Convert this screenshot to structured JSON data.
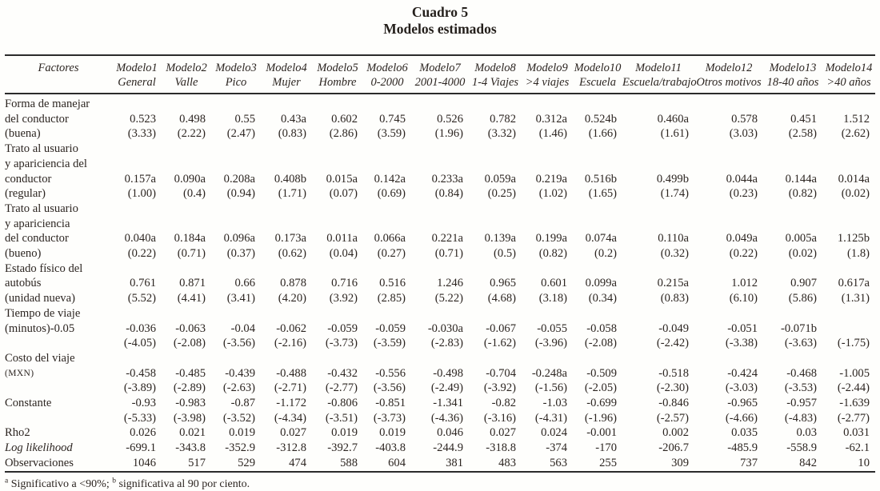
{
  "title": {
    "line1": "Cuadro 5",
    "line2": "Modelos estimados"
  },
  "colors": {
    "background": "#fefefc",
    "text": "#2c2521",
    "rule": "#2b2b2b"
  },
  "footnote": {
    "sup_a": "a",
    "part_a": " Significativo a <90%; ",
    "sup_b": "b",
    "part_b": " significativa al 90 por ciento."
  },
  "table": {
    "header": {
      "factores": "Factores",
      "models": [
        {
          "line1": "Modelo1",
          "line2": "General"
        },
        {
          "line1": "Modelo2",
          "line2": "Valle"
        },
        {
          "line1": "Modelo3",
          "line2": "Pico"
        },
        {
          "line1": "Modelo4",
          "line2": "Mujer"
        },
        {
          "line1": "Modelo5",
          "line2": "Hombre"
        },
        {
          "line1": "Modelo6",
          "line2": "0-2000"
        },
        {
          "line1": "Modelo7",
          "line2": "2001-4000"
        },
        {
          "line1": "Modelo8",
          "line2": "1-4 Viajes"
        },
        {
          "line1": "Modelo9",
          "line2": ">4 viajes"
        },
        {
          "line1": "Modelo10",
          "line2": "Escuela"
        },
        {
          "line1": "Modelo11",
          "line2": "Escuela/trabajo"
        },
        {
          "line1": "Modelo12",
          "line2": "Otros motivos"
        },
        {
          "line1": "Modelo13",
          "line2": "18-40 años"
        },
        {
          "line1": "Modelo14",
          "line2": ">40 años"
        }
      ]
    },
    "lines": [
      {
        "label": "Forma de manejar",
        "cells": [
          "",
          "",
          "",
          "",
          "",
          "",
          "",
          "",
          "",
          "",
          "",
          "",
          "",
          ""
        ]
      },
      {
        "label": "del conductor",
        "cells": [
          "0.523",
          "0.498",
          "0.55",
          "0.43a",
          "0.602",
          "0.745",
          "0.526",
          "0.782",
          "0.312a",
          "0.524b",
          "0.460a",
          "0.578",
          "0.451",
          "1.512"
        ]
      },
      {
        "label": "(buena)",
        "cells": [
          "(3.33)",
          "(2.22)",
          "(2.47)",
          "(0.83)",
          "(2.86)",
          "(3.59)",
          "(1.96)",
          "(3.32)",
          "(1.46)",
          "(1.66)",
          "(1.61)",
          "(3.03)",
          "(2.58)",
          "(2.62)"
        ]
      },
      {
        "label": "Trato al usuario",
        "cells": [
          "",
          "",
          "",
          "",
          "",
          "",
          "",
          "",
          "",
          "",
          "",
          "",
          "",
          ""
        ]
      },
      {
        "label": "y apariciencia del",
        "cells": [
          "",
          "",
          "",
          "",
          "",
          "",
          "",
          "",
          "",
          "",
          "",
          "",
          "",
          ""
        ]
      },
      {
        "label": "conductor",
        "cells": [
          "0.157a",
          "0.090a",
          "0.208a",
          "0.408b",
          "0.015a",
          "0.142a",
          "0.233a",
          "0.059a",
          "0.219a",
          "0.516b",
          "0.499b",
          "0.044a",
          "0.144a",
          "0.014a"
        ]
      },
      {
        "label": "(regular)",
        "cells": [
          "(1.00)",
          "(0.4)",
          "(0.94)",
          "(1.71)",
          "(0.07)",
          "(0.69)",
          "(0.84)",
          "(0.25)",
          "(1.02)",
          "(1.65)",
          "(1.74)",
          "(0.23)",
          "(0.82)",
          "(0.02)"
        ]
      },
      {
        "label": "Trato al usuario",
        "cells": [
          "",
          "",
          "",
          "",
          "",
          "",
          "",
          "",
          "",
          "",
          "",
          "",
          "",
          ""
        ]
      },
      {
        "label": "y apariciencia",
        "cells": [
          "",
          "",
          "",
          "",
          "",
          "",
          "",
          "",
          "",
          "",
          "",
          "",
          "",
          ""
        ]
      },
      {
        "label": "del conductor",
        "cells": [
          "0.040a",
          "0.184a",
          "0.096a",
          "0.173a",
          "0.011a",
          "0.066a",
          "0.221a",
          "0.139a",
          "0.199a",
          "0.074a",
          "0.110a",
          "0.049a",
          "0.005a",
          "1.125b"
        ]
      },
      {
        "label": "(bueno)",
        "cells": [
          "(0.22)",
          "(0.71)",
          "(0.37)",
          "(0.62)",
          "(0.04)",
          "(0.27)",
          "(0.71)",
          "(0.5)",
          "(0.82)",
          "(0.2)",
          "(0.32)",
          "(0.22)",
          "(0.02)",
          "(1.8)"
        ]
      },
      {
        "label": "Estado físico del",
        "cells": [
          "",
          "",
          "",
          "",
          "",
          "",
          "",
          "",
          "",
          "",
          "",
          "",
          "",
          ""
        ]
      },
      {
        "label": "autobús",
        "cells": [
          "0.761",
          "0.871",
          "0.66",
          "0.878",
          "0.716",
          "0.516",
          "1.246",
          "0.965",
          "0.601",
          "0.099a",
          "0.215a",
          "1.012",
          "0.907",
          "0.617a"
        ]
      },
      {
        "label": "(unidad nueva)",
        "cells": [
          "(5.52)",
          "(4.41)",
          "(3.41)",
          "(4.20)",
          "(3.92)",
          "(2.85)",
          "(5.22)",
          "(4.68)",
          "(3.18)",
          "(0.34)",
          "(0.83)",
          "(6.10)",
          "(5.86)",
          "(1.31)"
        ]
      },
      {
        "label": "Tiempo de viaje",
        "cells": [
          "",
          "",
          "",
          "",
          "",
          "",
          "",
          "",
          "",
          "",
          "",
          "",
          "",
          ""
        ]
      },
      {
        "label": "(minutos)-0.05",
        "cells": [
          "-0.036",
          "-0.063",
          "-0.04",
          "-0.062",
          "-0.059",
          "-0.059",
          "-0.030a",
          "-0.067",
          "-0.055",
          "-0.058",
          "-0.049",
          "-0.051",
          "-0.071b",
          ""
        ]
      },
      {
        "label": "",
        "cells": [
          "(-4.05)",
          "(-2.08)",
          "(-3.56)",
          "(-2.16)",
          "(-3.73)",
          "(-3.59)",
          "(-2.83)",
          "(-1.62)",
          "(-3.96)",
          "(-2.08)",
          "(-2.42)",
          "(-3.38)",
          "(-3.63)",
          "(-1.75)"
        ]
      },
      {
        "label": "Costo del viaje",
        "cells": [
          "",
          "",
          "",
          "",
          "",
          "",
          "",
          "",
          "",
          "",
          "",
          "",
          "",
          ""
        ]
      },
      {
        "label": "(MXN)",
        "small": true,
        "cells": [
          "-0.458",
          "-0.485",
          "-0.439",
          "-0.488",
          "-0.432",
          "-0.556",
          "-0.498",
          "-0.704",
          "-0.248a",
          "-0.509",
          "-0.518",
          "-0.424",
          "-0.468",
          "-1.005"
        ]
      },
      {
        "label": "",
        "cells": [
          "(-3.89)",
          "(-2.89)",
          "(-2.63)",
          "(-2.71)",
          "(-2.77)",
          "(-3.56)",
          "(-2.49)",
          "(-3.92)",
          "(-1.56)",
          "(-2.05)",
          "(-2.30)",
          "(-3.03)",
          "(-3.53)",
          "(-2.44)"
        ]
      },
      {
        "label": "Constante",
        "cells": [
          "-0.93",
          "-0.983",
          "-0.87",
          "-1.172",
          "-0.806",
          "-0.851",
          "-1.341",
          "-0.82",
          "-1.03",
          "-0.699",
          "-0.846",
          "-0.965",
          "-0.957",
          "-1.639"
        ]
      },
      {
        "label": "",
        "cells": [
          "(-5.33)",
          "(-3.98)",
          "(-3.52)",
          "(-4.34)",
          "(-3.51)",
          "(-3.73)",
          "(-4.36)",
          "(-3.16)",
          "(-4.31)",
          "(-1.96)",
          "(-2.57)",
          "(-4.66)",
          "(-4.83)",
          "(-2.77)"
        ]
      },
      {
        "label": "Rho2",
        "cells": [
          "0.026",
          "0.021",
          "0.019",
          "0.027",
          "0.019",
          "0.019",
          "0.046",
          "0.027",
          "0.024",
          "-0.001",
          "0.002",
          "0.035",
          "0.03",
          "0.031"
        ]
      },
      {
        "label": "Log likelihood",
        "italic": true,
        "cells": [
          "-699.1",
          "-343.8",
          "-352.9",
          "-312.8",
          "-392.7",
          "-403.8",
          "-244.9",
          "-318.8",
          "-374",
          "-170",
          "-206.7",
          "-485.9",
          "-558.9",
          "-62.1"
        ]
      },
      {
        "label": "Observaciones",
        "cells": [
          "1046",
          "517",
          "529",
          "474",
          "588",
          "604",
          "381",
          "483",
          "563",
          "255",
          "309",
          "737",
          "842",
          "10"
        ]
      }
    ]
  }
}
